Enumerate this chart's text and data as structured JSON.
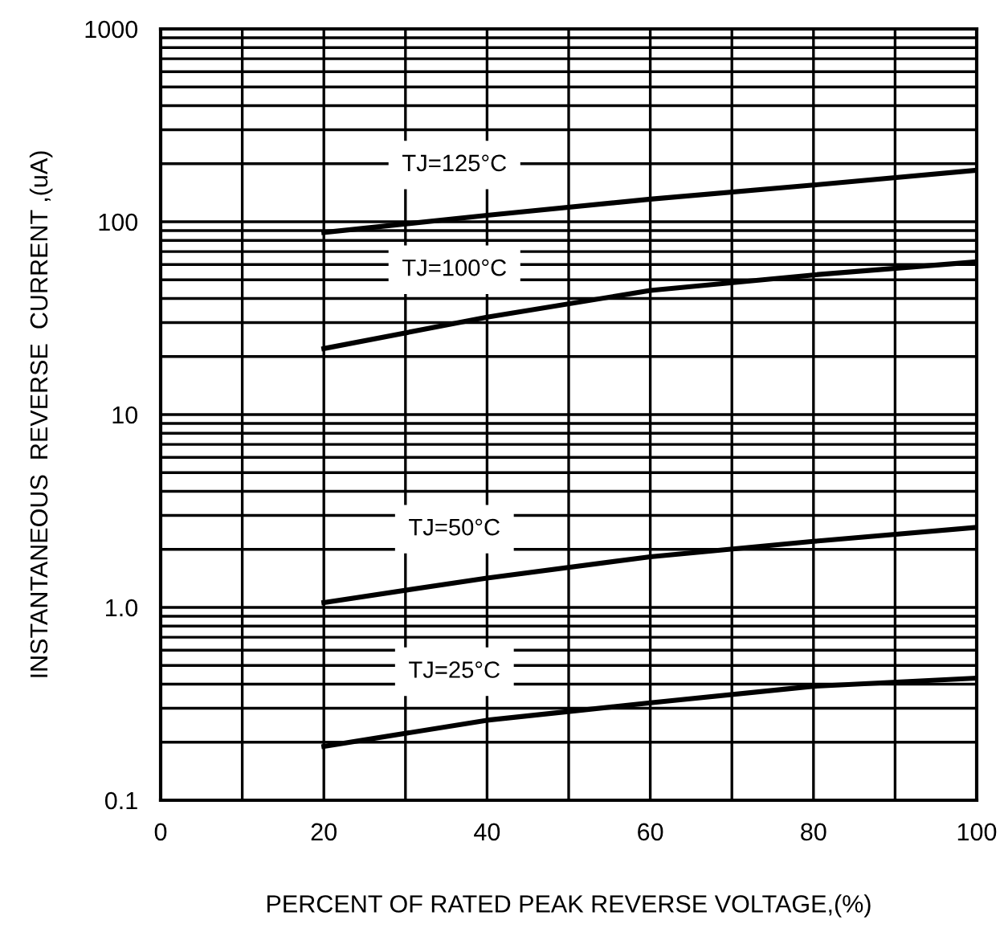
{
  "chart_data": {
    "type": "line",
    "xlabel": "PERCENT OF RATED PEAK REVERSE VOLTAGE,(%)",
    "ylabel": "INSTANTANEOUS  REVERSE  CURRENT ,(uA)",
    "log": "y",
    "grid": true,
    "legend": false,
    "marker": "none",
    "line_style": "solid",
    "xlim": [
      0,
      100
    ],
    "ylim": [
      0.1,
      1000
    ],
    "xticks": [
      0,
      {
        "value": 10,
        "label": null
      },
      20,
      {
        "value": 30,
        "label": null
      },
      40,
      {
        "value": 50,
        "label": null
      },
      60,
      {
        "value": 70,
        "label": null
      },
      80,
      {
        "value": 90,
        "label": null
      },
      100
    ],
    "yticks": [
      0.1,
      {
        "value": 1,
        "label": "1.0"
      },
      10,
      100,
      1000
    ],
    "x": [
      20,
      40,
      60,
      80,
      100
    ],
    "series": [
      {
        "name": "TJ=125°C",
        "color": "#000000",
        "values": [
          88,
          108,
          131,
          155,
          185
        ]
      },
      {
        "name": "TJ=100°C",
        "color": "#000000",
        "values": [
          22,
          32,
          44,
          53,
          62
        ]
      },
      {
        "name": "TJ=50°C",
        "color": "#000000",
        "values": [
          1.06,
          1.42,
          1.83,
          2.2,
          2.6
        ]
      },
      {
        "name": "TJ=25°C",
        "color": "#000000",
        "values": [
          0.19,
          0.26,
          0.32,
          0.39,
          0.43
        ]
      }
    ]
  }
}
